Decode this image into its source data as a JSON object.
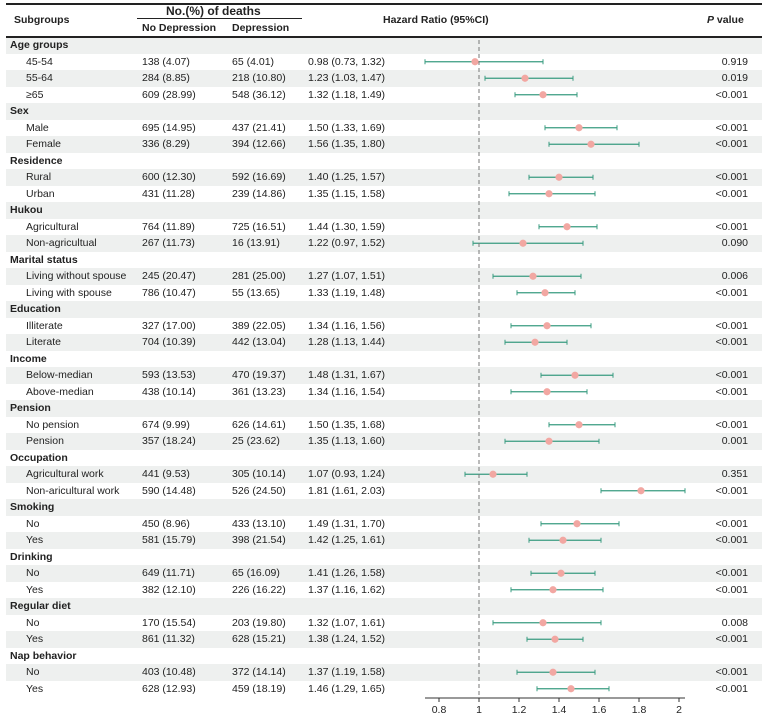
{
  "header": {
    "subgroups": "Subgroups",
    "deaths_group": "No.(%) of deaths",
    "no_depression": "No Depression",
    "depression": "Depression",
    "hazard_ratio": "Hazard Ratio (95%CI)",
    "p_value_italic": "P",
    "p_value_rest": " value"
  },
  "colors": {
    "ci_line": "#3a9c80",
    "point": "#f2a7a2",
    "reference_line": "#777777",
    "row_shade": "#eef0ef"
  },
  "chart_data": {
    "type": "forest",
    "reference_value": 1,
    "xlim": [
      0.73,
      2.03
    ],
    "x_ticks": [
      "0.8",
      "1",
      "1.2",
      "1.4",
      "1.6",
      "1.8",
      "2"
    ],
    "groups": [
      {
        "label": "Age groups",
        "items": [
          {
            "label": "45-54",
            "no_dep": "138 (4.07)",
            "dep": "65 (4.01)",
            "hr_text": "0.98 (0.73, 1.32)",
            "hr": 0.98,
            "lo": 0.73,
            "hi": 1.32,
            "p": "0.919"
          },
          {
            "label": "55-64",
            "no_dep": "284 (8.85)",
            "dep": "218 (10.80)",
            "hr_text": "1.23 (1.03, 1.47)",
            "hr": 1.23,
            "lo": 1.03,
            "hi": 1.47,
            "p": "0.019"
          },
          {
            "label": "≥65",
            "no_dep": "609 (28.99)",
            "dep": "548 (36.12)",
            "hr_text": "1.32 (1.18, 1.49)",
            "hr": 1.32,
            "lo": 1.18,
            "hi": 1.49,
            "p": "<0.001"
          }
        ]
      },
      {
        "label": "Sex",
        "items": [
          {
            "label": "Male",
            "no_dep": "695 (14.95)",
            "dep": "437 (21.41)",
            "hr_text": "1.50 (1.33, 1.69)",
            "hr": 1.5,
            "lo": 1.33,
            "hi": 1.69,
            "p": "<0.001"
          },
          {
            "label": "Female",
            "no_dep": "336 (8.29)",
            "dep": "394 (12.66)",
            "hr_text": "1.56 (1.35, 1.80)",
            "hr": 1.56,
            "lo": 1.35,
            "hi": 1.8,
            "p": "<0.001"
          }
        ]
      },
      {
        "label": "Residence",
        "items": [
          {
            "label": "Rural",
            "no_dep": "600 (12.30)",
            "dep": "592 (16.69)",
            "hr_text": "1.40 (1.25, 1.57)",
            "hr": 1.4,
            "lo": 1.25,
            "hi": 1.57,
            "p": "<0.001"
          },
          {
            "label": "Urban",
            "no_dep": "431 (11.28)",
            "dep": "239 (14.86)",
            "hr_text": "1.35 (1.15, 1.58)",
            "hr": 1.35,
            "lo": 1.15,
            "hi": 1.58,
            "p": "<0.001"
          }
        ]
      },
      {
        "label": "Hukou",
        "items": [
          {
            "label": "Agricultural",
            "no_dep": "764 (11.89)",
            "dep": "725 (16.51)",
            "hr_text": "1.44 (1.30, 1.59)",
            "hr": 1.44,
            "lo": 1.3,
            "hi": 1.59,
            "p": "<0.001"
          },
          {
            "label": "Non-agricultual",
            "no_dep": "267 (11.73)",
            "dep": "16 (13.91)",
            "hr_text": "1.22 (0.97, 1.52)",
            "hr": 1.22,
            "lo": 0.97,
            "hi": 1.52,
            "p": "0.090"
          }
        ]
      },
      {
        "label": "Marital status",
        "items": [
          {
            "label": "Living without spouse",
            "no_dep": "245 (20.47)",
            "dep": "281 (25.00)",
            "hr_text": "1.27 (1.07, 1.51)",
            "hr": 1.27,
            "lo": 1.07,
            "hi": 1.51,
            "p": "0.006"
          },
          {
            "label": "Living with spouse",
            "no_dep": "786 (10.47)",
            "dep": "55 (13.65)",
            "hr_text": "1.33 (1.19, 1.48)",
            "hr": 1.33,
            "lo": 1.19,
            "hi": 1.48,
            "p": "<0.001"
          }
        ]
      },
      {
        "label": "Education",
        "items": [
          {
            "label": "Illiterate",
            "no_dep": "327 (17.00)",
            "dep": "389 (22.05)",
            "hr_text": "1.34 (1.16, 1.56)",
            "hr": 1.34,
            "lo": 1.16,
            "hi": 1.56,
            "p": "<0.001"
          },
          {
            "label": "Literate",
            "no_dep": "704 (10.39)",
            "dep": "442 (13.04)",
            "hr_text": "1.28 (1.13, 1.44)",
            "hr": 1.28,
            "lo": 1.13,
            "hi": 1.44,
            "p": "<0.001"
          }
        ]
      },
      {
        "label": "Income",
        "items": [
          {
            "label": "Below-median",
            "no_dep": "593 (13.53)",
            "dep": "470 (19.37)",
            "hr_text": "1.48 (1.31, 1.67)",
            "hr": 1.48,
            "lo": 1.31,
            "hi": 1.67,
            "p": "<0.001"
          },
          {
            "label": "Above-median",
            "no_dep": "438 (10.14)",
            "dep": "361 (13.23)",
            "hr_text": "1.34 (1.16, 1.54)",
            "hr": 1.34,
            "lo": 1.16,
            "hi": 1.54,
            "p": "<0.001"
          }
        ]
      },
      {
        "label": "Pension",
        "items": [
          {
            "label": "No pension",
            "no_dep": "674 (9.99)",
            "dep": "626 (14.61)",
            "hr_text": "1.50 (1.35, 1.68)",
            "hr": 1.5,
            "lo": 1.35,
            "hi": 1.68,
            "p": "<0.001"
          },
          {
            "label": "Pension",
            "no_dep": "357 (18.24)",
            "dep": "25 (23.62)",
            "hr_text": "1.35 (1.13, 1.60)",
            "hr": 1.35,
            "lo": 1.13,
            "hi": 1.6,
            "p": "0.001"
          }
        ]
      },
      {
        "label": "Occupation",
        "items": [
          {
            "label": "Agricultural work",
            "no_dep": "441 (9.53)",
            "dep": "305 (10.14)",
            "hr_text": "1.07 (0.93, 1.24)",
            "hr": 1.07,
            "lo": 0.93,
            "hi": 1.24,
            "p": "0.351"
          },
          {
            "label": "Non-aricultural work",
            "no_dep": "590 (14.48)",
            "dep": "526 (24.50)",
            "hr_text": "1.81 (1.61, 2.03)",
            "hr": 1.81,
            "lo": 1.61,
            "hi": 2.03,
            "p": "<0.001"
          }
        ]
      },
      {
        "label": "Smoking",
        "items": [
          {
            "label": "No",
            "no_dep": "450 (8.96)",
            "dep": "433 (13.10)",
            "hr_text": "1.49 (1.31, 1.70)",
            "hr": 1.49,
            "lo": 1.31,
            "hi": 1.7,
            "p": "<0.001"
          },
          {
            "label": "Yes",
            "no_dep": "581 (15.79)",
            "dep": "398 (21.54)",
            "hr_text": "1.42 (1.25, 1.61)",
            "hr": 1.42,
            "lo": 1.25,
            "hi": 1.61,
            "p": "<0.001"
          }
        ]
      },
      {
        "label": "Drinking",
        "items": [
          {
            "label": "No",
            "no_dep": "649 (11.71)",
            "dep": "65 (16.09)",
            "hr_text": "1.41 (1.26, 1.58)",
            "hr": 1.41,
            "lo": 1.26,
            "hi": 1.58,
            "p": "<0.001"
          },
          {
            "label": "Yes",
            "no_dep": "382 (12.10)",
            "dep": "226 (16.22)",
            "hr_text": "1.37 (1.16, 1.62)",
            "hr": 1.37,
            "lo": 1.16,
            "hi": 1.62,
            "p": "<0.001"
          }
        ]
      },
      {
        "label": "Regular diet",
        "items": [
          {
            "label": "No",
            "no_dep": "170 (15.54)",
            "dep": "203 (19.80)",
            "hr_text": "1.32 (1.07, 1.61)",
            "hr": 1.32,
            "lo": 1.07,
            "hi": 1.61,
            "p": "0.008"
          },
          {
            "label": "Yes",
            "no_dep": "861 (11.32)",
            "dep": "628 (15.21)",
            "hr_text": "1.38 (1.24, 1.52)",
            "hr": 1.38,
            "lo": 1.24,
            "hi": 1.52,
            "p": "<0.001"
          }
        ]
      },
      {
        "label": "Nap behavior",
        "items": [
          {
            "label": "No",
            "no_dep": "403 (10.48)",
            "dep": "372 (14.14)",
            "hr_text": "1.37 (1.19, 1.58)",
            "hr": 1.37,
            "lo": 1.19,
            "hi": 1.58,
            "p": "<0.001"
          },
          {
            "label": "Yes",
            "no_dep": "628 (12.93)",
            "dep": "459 (18.19)",
            "hr_text": "1.46 (1.29, 1.65)",
            "hr": 1.46,
            "lo": 1.29,
            "hi": 1.65,
            "p": "<0.001"
          }
        ]
      }
    ]
  }
}
